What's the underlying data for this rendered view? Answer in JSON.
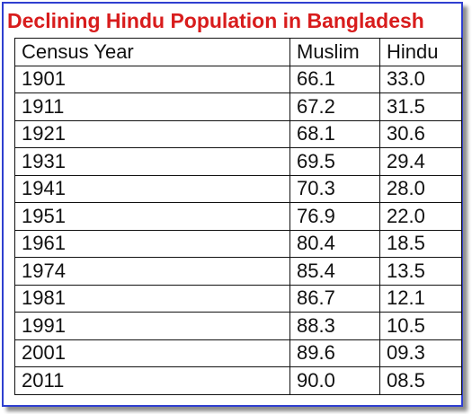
{
  "title": "Declining Hindu Population in Bangladesh",
  "table": {
    "headers": [
      "Census Year",
      "Muslim",
      "Hindu"
    ],
    "rows": [
      [
        "1901",
        "66.1",
        "33.0"
      ],
      [
        "1911",
        "67.2",
        "31.5"
      ],
      [
        "1921",
        "68.1",
        "30.6"
      ],
      [
        "1931",
        "69.5",
        "29.4"
      ],
      [
        "1941",
        "70.3",
        "28.0"
      ],
      [
        "1951",
        "76.9",
        "22.0"
      ],
      [
        "1961",
        "80.4",
        "18.5"
      ],
      [
        "1974",
        "85.4",
        "13.5"
      ],
      [
        "1981",
        "86.7",
        "12.1"
      ],
      [
        "1991",
        "88.3",
        "10.5"
      ],
      [
        "2001",
        "89.6",
        "09.3"
      ],
      [
        "2011",
        "90.0",
        "08.5"
      ]
    ]
  },
  "colors": {
    "title": "#d81c1c",
    "frame_border": "#2f3fd0",
    "grid": "#111111"
  }
}
